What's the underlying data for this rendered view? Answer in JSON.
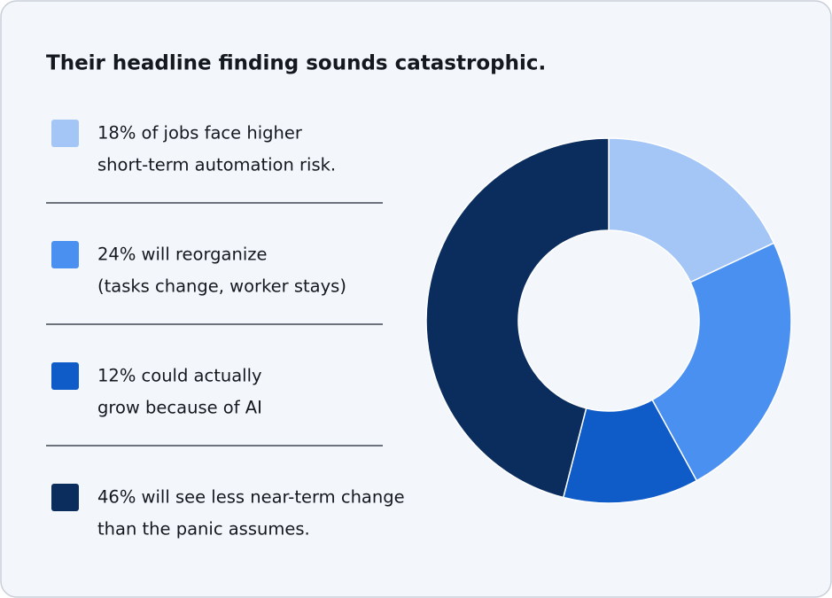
{
  "chart_data": {
    "type": "donut",
    "title": "Their headline finding sounds catastrophic.",
    "categories": [
      [
        "18% of jobs face higher",
        "short-term automation risk."
      ],
      [
        "24% will reorganize",
        "(tasks change, worker stays)"
      ],
      [
        "12% could actually",
        "grow because of AI"
      ],
      [
        "46% will see less near-term change",
        "than the panic assumes."
      ]
    ],
    "values": [
      18,
      24,
      12,
      46
    ],
    "colors": [
      "#a3c6f7",
      "#4a90f0",
      "#0f5bc8",
      "#0a2d5e"
    ]
  }
}
